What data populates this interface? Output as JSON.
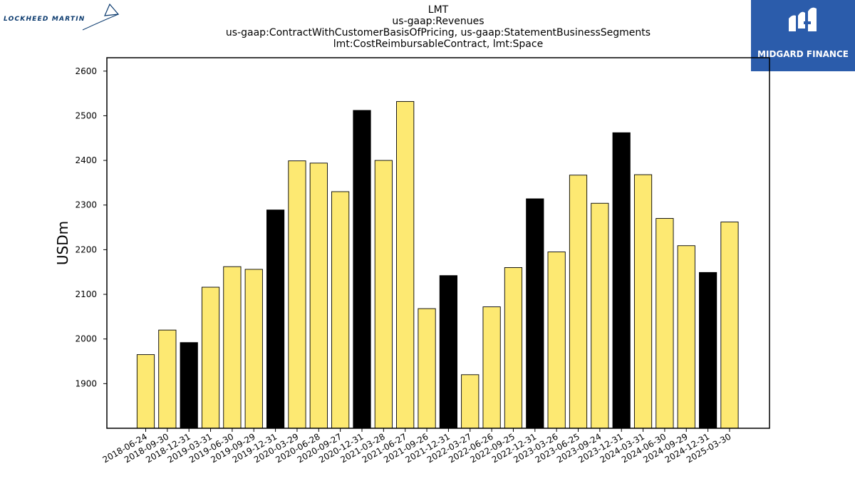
{
  "header": {
    "title_lines": [
      "LMT",
      "us-gaap:Revenues",
      "us-gaap:ContractWithCustomerBasisOfPricing, us-gaap:StatementBusinessSegments",
      "lmt:CostReimbursableContract, lmt:Space"
    ]
  },
  "logos": {
    "left_text": "LOCKHEED MARTIN",
    "right_text": "MIDGARD FINANCE",
    "right_bg": "#2b5cab"
  },
  "colors": {
    "bar_regular": "#fde972",
    "bar_q4": "#000000",
    "bar_edge": "#000000"
  },
  "chart_data": {
    "type": "bar",
    "ylabel": "USDm",
    "xlabel": "",
    "ylim": [
      1800,
      2630
    ],
    "yticks": [
      1900,
      2000,
      2100,
      2200,
      2300,
      2400,
      2500,
      2600
    ],
    "grid": false,
    "categories": [
      "2018-06-24",
      "2018-09-30",
      "2018-12-31",
      "2019-03-31",
      "2019-06-30",
      "2019-09-29",
      "2019-12-31",
      "2020-03-29",
      "2020-06-28",
      "2020-09-27",
      "2020-12-31",
      "2021-03-28",
      "2021-06-27",
      "2021-09-26",
      "2021-12-31",
      "2022-03-27",
      "2022-06-26",
      "2022-09-25",
      "2022-12-31",
      "2023-03-26",
      "2023-06-25",
      "2023-09-24",
      "2023-12-31",
      "2024-03-31",
      "2024-06-30",
      "2024-09-29",
      "2024-12-31",
      "2025-03-30"
    ],
    "values": [
      1965,
      2020,
      1992,
      2116,
      2162,
      2156,
      2289,
      2399,
      2394,
      2330,
      2512,
      2400,
      2532,
      2068,
      2142,
      1920,
      2072,
      2160,
      2314,
      2195,
      2367,
      2304,
      2462,
      2368,
      2270,
      2209,
      2149,
      2262
    ],
    "highlight": [
      false,
      false,
      true,
      false,
      false,
      false,
      true,
      false,
      false,
      false,
      true,
      false,
      false,
      false,
      true,
      false,
      false,
      false,
      true,
      false,
      false,
      false,
      true,
      false,
      false,
      false,
      true,
      false
    ]
  }
}
